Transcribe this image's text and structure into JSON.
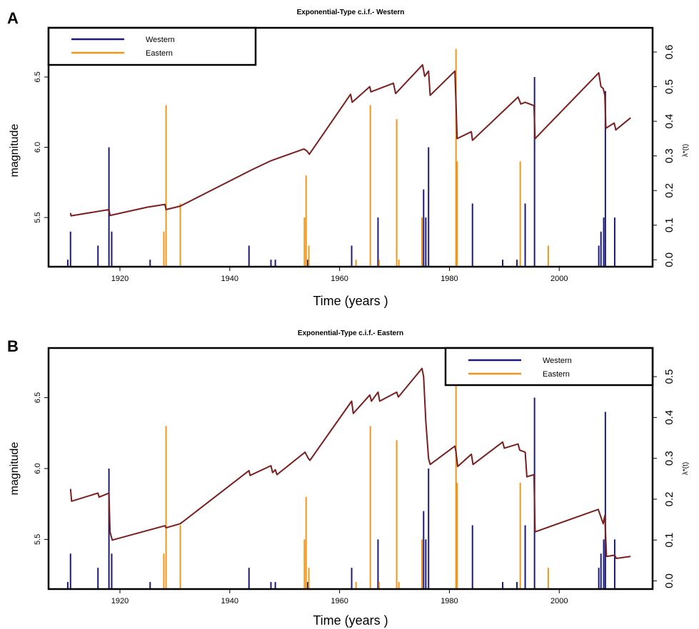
{
  "colors": {
    "western": "#1a1a7a",
    "eastern": "#f0961a",
    "cif": "#7a1e1e"
  },
  "axis_labels": {
    "x": "Time (years )",
    "y_left": "magnitude",
    "y_right": "λ*(t)"
  },
  "chart_data": [
    {
      "panel": "A",
      "title": "Exponential-Type c.i.f.- Western",
      "type": "line",
      "xlim": [
        1907,
        2017
      ],
      "ylim_left": [
        5.15,
        6.85
      ],
      "ylim_right": [
        -0.02,
        0.67
      ],
      "x_ticks": [
        1920,
        1940,
        1960,
        1980,
        2000
      ],
      "y_left_ticks": [
        5.5,
        6.0,
        6.5
      ],
      "y_right_ticks": [
        0.0,
        0.1,
        0.2,
        0.3,
        0.4,
        0.5,
        0.6
      ],
      "legend": {
        "placement": "top-left",
        "entries": [
          "Western",
          "Eastern"
        ]
      },
      "series": [
        {
          "name": "Western",
          "kind": "spikes",
          "x": [
            1910.5,
            1911,
            1916,
            1918,
            1918.5,
            1925.5,
            1943.5,
            1947.5,
            1948.3,
            1954.2,
            1962.2,
            1967,
            1975.3,
            1975.7,
            1976.2,
            1984.2,
            1989.7,
            1992.3,
            1993.8,
            1995.5,
            2007.2,
            2007.6,
            2008.1,
            2008.4,
            2010.1
          ],
          "values": [
            5.2,
            5.4,
            5.3,
            6.0,
            5.4,
            5.2,
            5.3,
            5.2,
            5.2,
            5.2,
            5.3,
            5.5,
            5.7,
            5.5,
            6.0,
            5.6,
            5.2,
            5.2,
            5.6,
            6.5,
            5.3,
            5.4,
            5.5,
            6.4,
            5.5
          ]
        },
        {
          "name": "Eastern",
          "kind": "spikes",
          "x": [
            1928.0,
            1928.4,
            1931.0,
            1953.6,
            1953.9,
            1954.4,
            1963.0,
            1965.6,
            1967.2,
            1970.4,
            1970.8,
            1975.0,
            1981.2,
            1981.4,
            1992.9,
            1998.0
          ],
          "values": [
            5.4,
            6.3,
            5.6,
            5.5,
            5.8,
            5.3,
            5.2,
            6.3,
            5.2,
            6.2,
            5.2,
            5.5,
            6.7,
            5.9,
            5.9,
            5.3
          ]
        },
        {
          "name": "λ*(t)",
          "kind": "line",
          "x": [
            1911,
            1911.1,
            1918,
            1918.2,
            1925,
            1928.2,
            1928.4,
            1931,
            1944,
            1947.5,
            1953.5,
            1954,
            1954.5,
            1962,
            1962.3,
            1965.5,
            1965.7,
            1969.8,
            1970.2,
            1975.1,
            1975.5,
            1976.2,
            1976.5,
            1981,
            1981.2,
            1981.4,
            1984,
            1984.2,
            1992.5,
            1993,
            1993.8,
            1995.4,
            1995.6,
            2007.2,
            2007.6,
            2008,
            2008.3,
            2008.5,
            2010,
            2010.3,
            2013
          ],
          "values": [
            0.135,
            0.127,
            0.145,
            0.128,
            0.152,
            0.16,
            0.145,
            0.155,
            0.26,
            0.286,
            0.32,
            0.315,
            0.305,
            0.478,
            0.455,
            0.5,
            0.485,
            0.51,
            0.48,
            0.563,
            0.53,
            0.545,
            0.475,
            0.545,
            0.45,
            0.35,
            0.37,
            0.345,
            0.47,
            0.45,
            0.455,
            0.445,
            0.35,
            0.54,
            0.5,
            0.495,
            0.475,
            0.38,
            0.395,
            0.375,
            0.41
          ]
        }
      ]
    },
    {
      "panel": "B",
      "title": "Exponential-Type c.i.f.- Eastern",
      "type": "line",
      "xlim": [
        1907,
        2017
      ],
      "ylim_left": [
        5.15,
        6.85
      ],
      "ylim_right": [
        -0.02,
        0.57
      ],
      "x_ticks": [
        1920,
        1940,
        1960,
        1980,
        2000
      ],
      "y_left_ticks": [
        5.5,
        6.0,
        6.5
      ],
      "y_right_ticks": [
        0.0,
        0.1,
        0.2,
        0.3,
        0.4,
        0.5
      ],
      "legend": {
        "placement": "top-right",
        "entries": [
          "Western",
          "Eastern"
        ]
      },
      "series": [
        {
          "name": "Western",
          "kind": "spikes",
          "x": [
            1910.5,
            1911,
            1916,
            1918,
            1918.5,
            1925.5,
            1943.5,
            1947.5,
            1948.3,
            1954.2,
            1962.2,
            1967,
            1975.3,
            1975.7,
            1976.2,
            1984.2,
            1989.7,
            1992.3,
            1993.8,
            1995.5,
            2007.2,
            2007.6,
            2008.1,
            2008.4,
            2010.1
          ],
          "values": [
            5.2,
            5.4,
            5.3,
            6.0,
            5.4,
            5.2,
            5.3,
            5.2,
            5.2,
            5.2,
            5.3,
            5.5,
            5.7,
            5.5,
            6.0,
            5.6,
            5.2,
            5.2,
            5.6,
            6.5,
            5.3,
            5.4,
            5.5,
            6.4,
            5.5
          ]
        },
        {
          "name": "Eastern",
          "kind": "spikes",
          "x": [
            1928.0,
            1928.4,
            1931.0,
            1953.6,
            1953.9,
            1954.4,
            1963.0,
            1965.6,
            1967.2,
            1970.4,
            1970.8,
            1975.0,
            1981.2,
            1981.4,
            1992.9,
            1998.0
          ],
          "values": [
            5.4,
            6.3,
            5.6,
            5.5,
            5.8,
            5.3,
            5.2,
            6.3,
            5.2,
            6.2,
            5.2,
            5.5,
            6.7,
            5.9,
            5.9,
            5.3
          ]
        },
        {
          "name": "λ*(t)",
          "kind": "line",
          "x": [
            1911,
            1911.2,
            1916,
            1916.2,
            1918,
            1918.2,
            1918.6,
            1928.2,
            1928.4,
            1931,
            1943.5,
            1943.7,
            1947.5,
            1947.8,
            1948.3,
            1948.6,
            1953.7,
            1954.3,
            1954.6,
            1962.2,
            1962.5,
            1965.5,
            1965.8,
            1967,
            1967.3,
            1970.4,
            1970.7,
            1975,
            1975.3,
            1975.7,
            1976.2,
            1976.5,
            1981,
            1981.2,
            1981.5,
            1984,
            1984.3,
            1989.7,
            1990,
            1992.5,
            1992.8,
            1993.8,
            1994.1,
            1995.4,
            1995.6,
            2007.1,
            2007.5,
            2008,
            2008.3,
            2008.6,
            2010.1,
            2010.4,
            2013
          ],
          "values": [
            0.225,
            0.195,
            0.215,
            0.205,
            0.215,
            0.12,
            0.1,
            0.135,
            0.13,
            0.14,
            0.27,
            0.258,
            0.282,
            0.265,
            0.272,
            0.26,
            0.315,
            0.3,
            0.295,
            0.44,
            0.41,
            0.455,
            0.44,
            0.462,
            0.44,
            0.462,
            0.45,
            0.52,
            0.5,
            0.39,
            0.3,
            0.285,
            0.33,
            0.315,
            0.28,
            0.31,
            0.285,
            0.34,
            0.325,
            0.335,
            0.32,
            0.315,
            0.255,
            0.26,
            0.12,
            0.175,
            0.16,
            0.14,
            0.16,
            0.06,
            0.063,
            0.055,
            0.06
          ]
        }
      ]
    }
  ]
}
